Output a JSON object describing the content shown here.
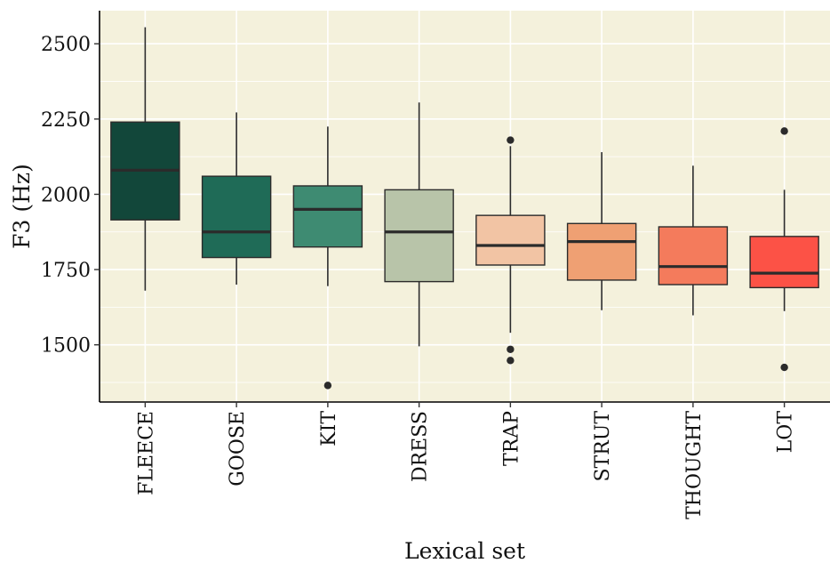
{
  "chart_data": {
    "type": "boxplot",
    "xlabel": "Lexical set",
    "ylabel": "F3 (Hz)",
    "ylim": [
      1310,
      2610
    ],
    "yticks": [
      1500,
      1750,
      2000,
      2250,
      2500
    ],
    "grid": true,
    "legend": "none",
    "categories": [
      "FLEECE",
      "GOOSE",
      "KIT",
      "DRESS",
      "TRAP",
      "STRUT",
      "THOUGHT",
      "LOT"
    ],
    "boxes": [
      {
        "label": "FLEECE",
        "whisker_low": 1680,
        "q1": 1915,
        "median": 2080,
        "q3": 2240,
        "whisker_high": 2555,
        "outliers": [],
        "color": "#12473a"
      },
      {
        "label": "GOOSE",
        "whisker_low": 1700,
        "q1": 1790,
        "median": 1875,
        "q3": 2060,
        "whisker_high": 2272,
        "outliers": [],
        "color": "#1f6b57"
      },
      {
        "label": "KIT",
        "whisker_low": 1695,
        "q1": 1825,
        "median": 1950,
        "q3": 2028,
        "whisker_high": 2225,
        "outliers": [
          1365
        ],
        "color": "#3e8b72"
      },
      {
        "label": "DRESS",
        "whisker_low": 1495,
        "q1": 1710,
        "median": 1875,
        "q3": 2015,
        "whisker_high": 2305,
        "outliers": [],
        "color": "#b8c4a9"
      },
      {
        "label": "TRAP",
        "whisker_low": 1540,
        "q1": 1765,
        "median": 1830,
        "q3": 1930,
        "whisker_high": 2160,
        "outliers": [
          2180,
          1485,
          1448
        ],
        "color": "#f2c4a4"
      },
      {
        "label": "STRUT",
        "whisker_low": 1615,
        "q1": 1715,
        "median": 1843,
        "q3": 1903,
        "whisker_high": 2140,
        "outliers": [],
        "color": "#efa073"
      },
      {
        "label": "THOUGHT",
        "whisker_low": 1598,
        "q1": 1700,
        "median": 1760,
        "q3": 1892,
        "whisker_high": 2095,
        "outliers": [],
        "color": "#f47b5c"
      },
      {
        "label": "LOT",
        "whisker_low": 1612,
        "q1": 1690,
        "median": 1738,
        "q3": 1860,
        "whisker_high": 2015,
        "outliers": [
          2210,
          1425
        ],
        "color": "#fc5246"
      }
    ],
    "colors": {
      "panel_background": "#f4f1dc",
      "gridline": "#ffffff",
      "line": "#2b2b2b"
    }
  }
}
